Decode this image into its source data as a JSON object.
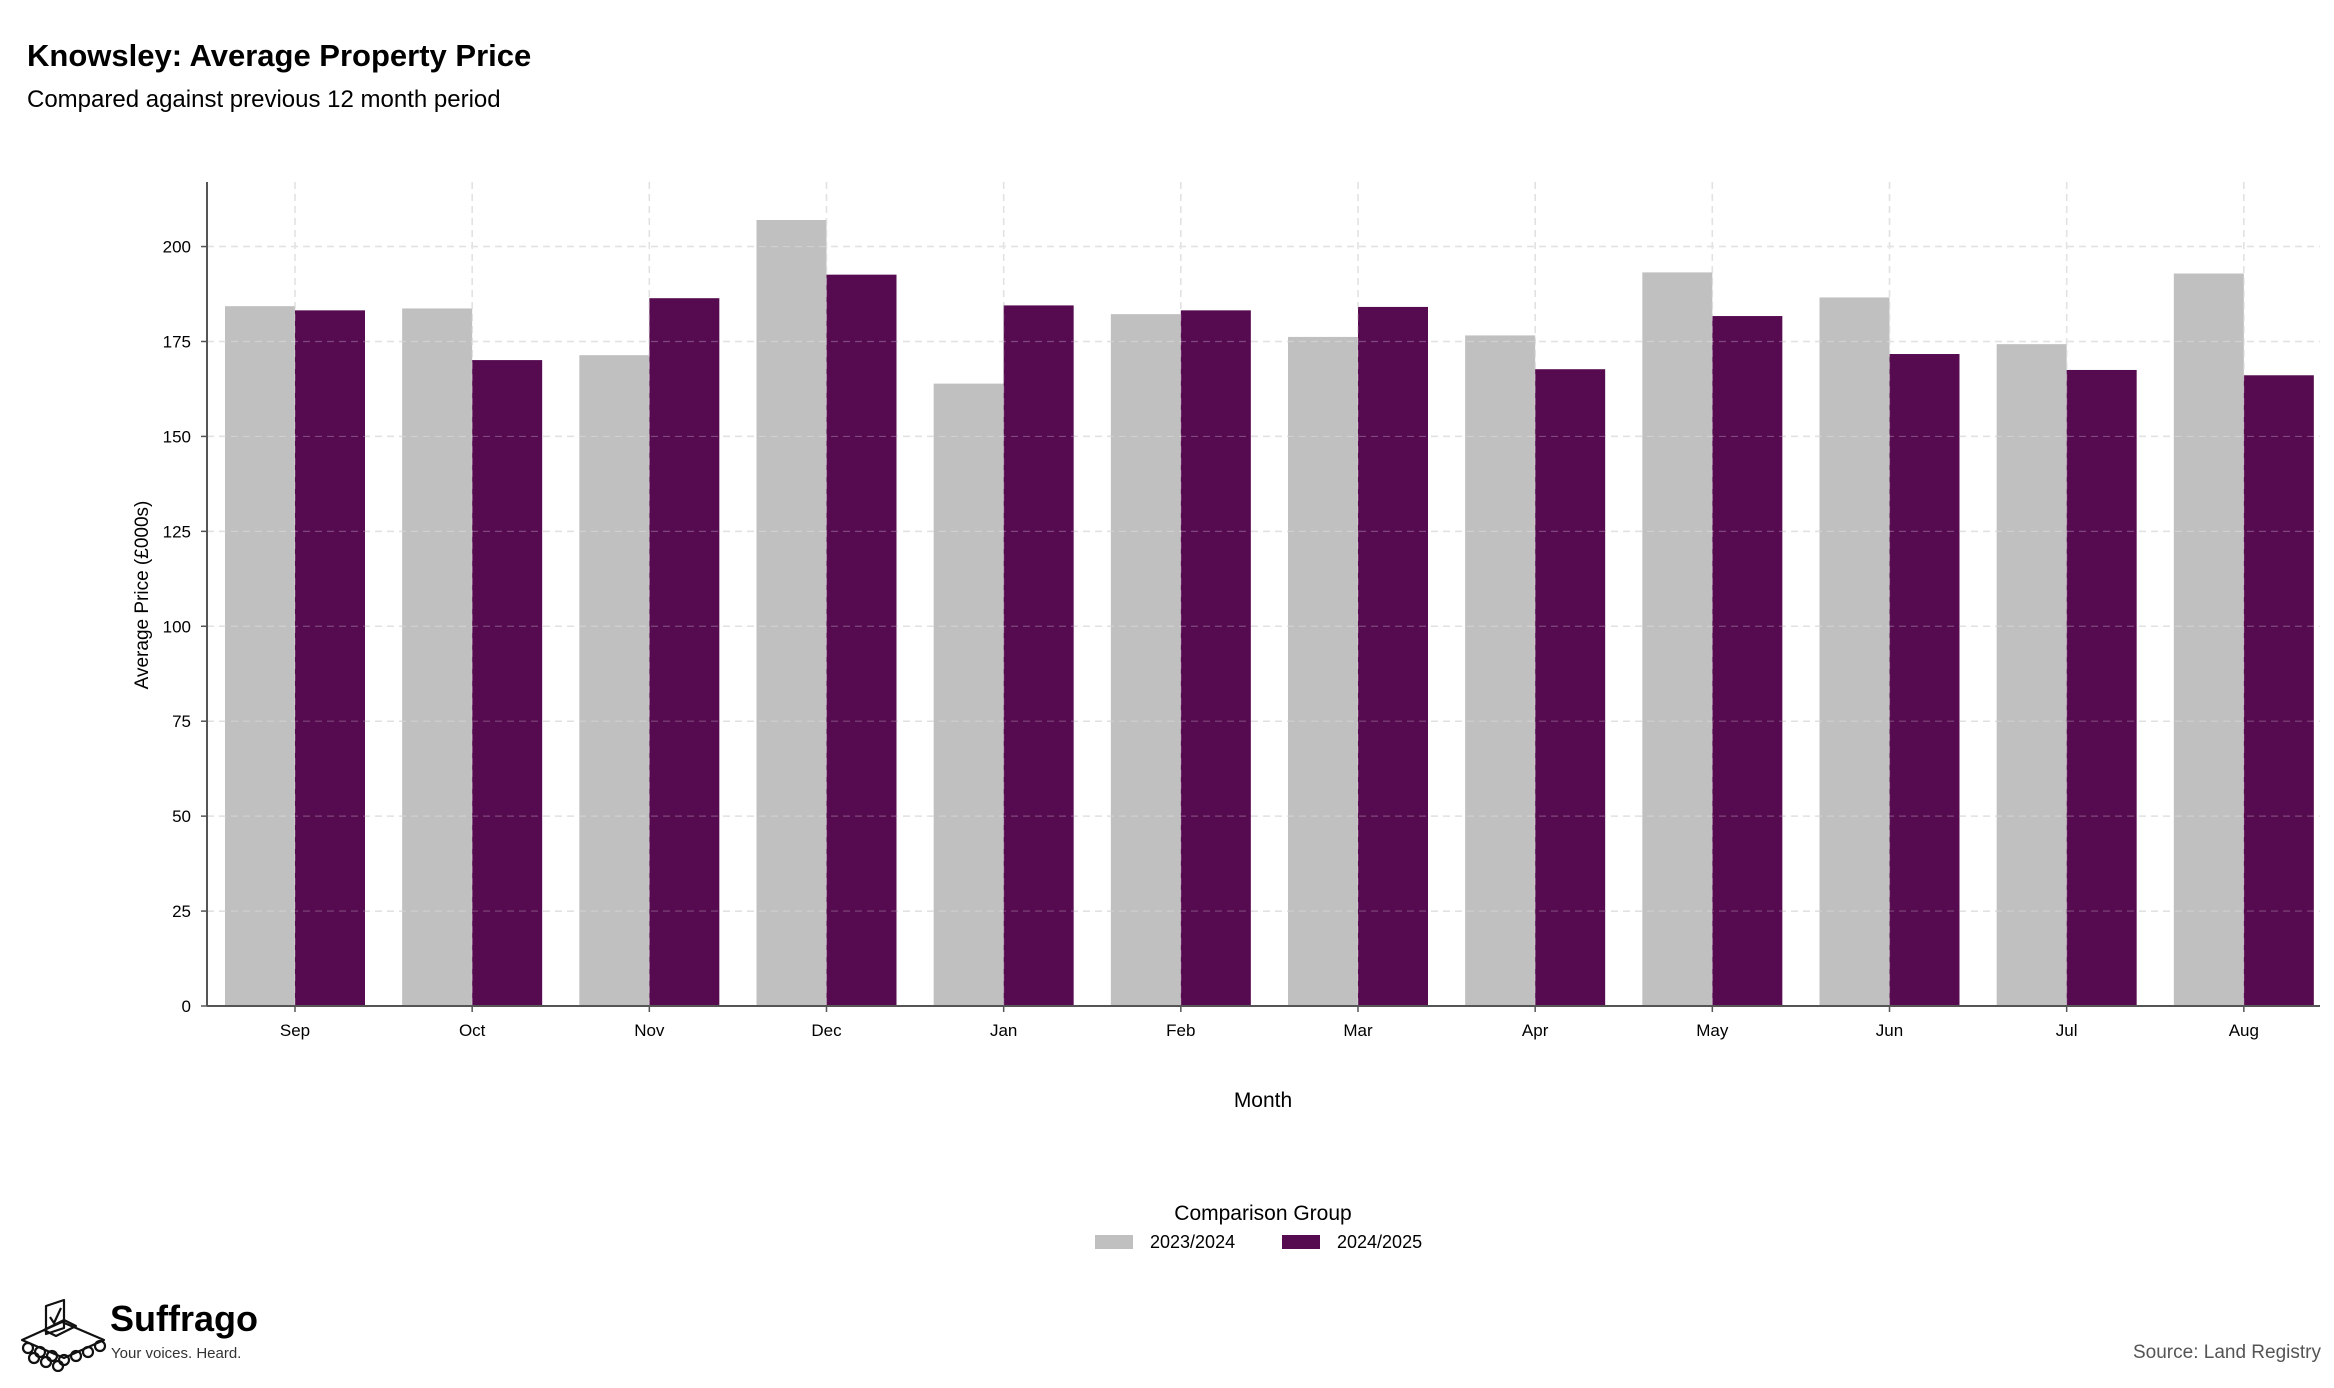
{
  "header": {
    "title": "Knowsley: Average Property Price",
    "subtitle": "Compared against previous 12 month period"
  },
  "brand": {
    "name": "Suffrago",
    "tagline": "Your voices. Heard.",
    "icon": "ballot-box-icon"
  },
  "footer": {
    "source": "Source: Land Registry"
  },
  "colors": {
    "series_2023": "#c0c0c0",
    "series_2024": "#560b50",
    "grid": "#d9d9d9",
    "axis": "#555555"
  },
  "chart_data": {
    "type": "bar",
    "title": "Knowsley: Average Property Price",
    "subtitle": "Compared against previous 12 month period",
    "xlabel": "Month",
    "ylabel": "Average Price (£000s)",
    "categories": [
      "Sep",
      "Oct",
      "Nov",
      "Dec",
      "Jan",
      "Feb",
      "Mar",
      "Apr",
      "May",
      "Jun",
      "Jul",
      "Aug"
    ],
    "series": [
      {
        "name": "2023/2024",
        "color": "#c0c0c0",
        "values": [
          184.3,
          183.7,
          171.4,
          207.0,
          163.9,
          182.2,
          176.2,
          176.6,
          193.2,
          186.6,
          174.3,
          192.9
        ]
      },
      {
        "name": "2024/2025",
        "color": "#560b50",
        "values": [
          183.2,
          170.1,
          186.4,
          192.6,
          184.5,
          183.2,
          184.1,
          167.7,
          181.7,
          171.7,
          167.5,
          166.1
        ]
      }
    ],
    "ylim": [
      0,
      217
    ],
    "yticks": [
      0,
      25,
      50,
      75,
      100,
      125,
      150,
      175,
      200
    ],
    "grid": true,
    "legend": {
      "title": "Comparison Group",
      "position": "bottom-center"
    }
  }
}
